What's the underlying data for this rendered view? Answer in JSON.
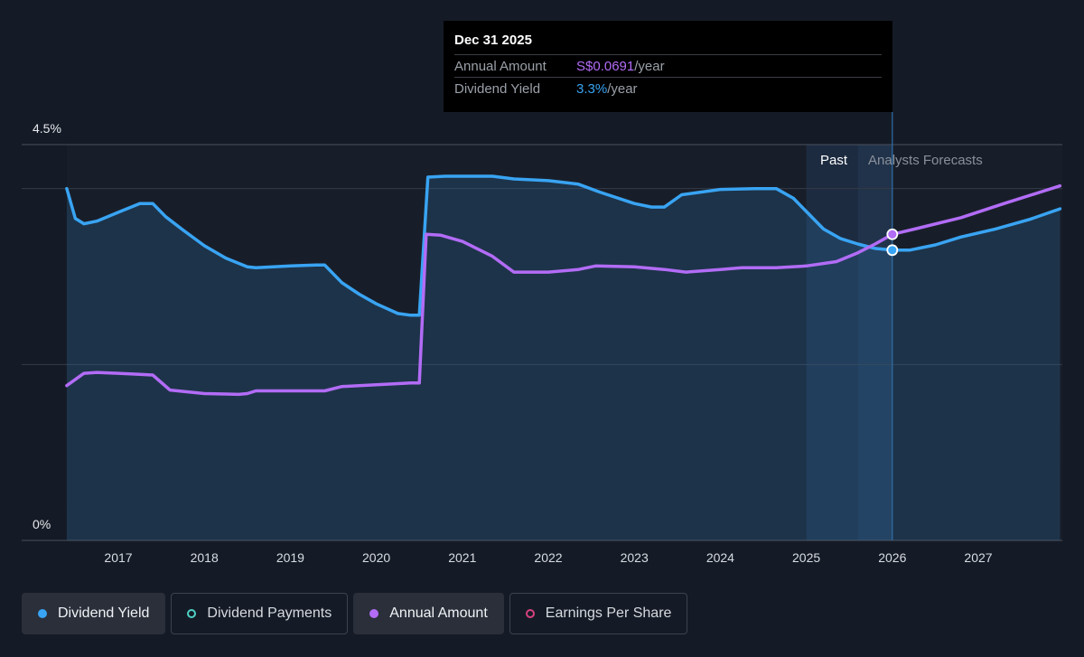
{
  "tooltip": {
    "date": "Dec 31 2025",
    "rows": [
      {
        "label": "Annual Amount",
        "value": "S$0.0691",
        "unit": "/year"
      },
      {
        "label": "Dividend Yield",
        "value": "3.3%",
        "unit": "/year"
      }
    ]
  },
  "regions": {
    "past_label": "Past",
    "forecast_label": "Analysts Forecasts"
  },
  "legend": [
    {
      "label": "Dividend Yield",
      "color": "#39a4f3",
      "style": "filled"
    },
    {
      "label": "Dividend Payments",
      "color": "#4fd1c5",
      "style": "outlined"
    },
    {
      "label": "Annual Amount",
      "color": "#b26cf6",
      "style": "filled"
    },
    {
      "label": "Earnings Per Share",
      "color": "#d6427f",
      "style": "outlined"
    }
  ],
  "colors": {
    "background": "#151b26",
    "plot_background": "#181e29",
    "yield_line": "#39a4f3",
    "amount_line": "#b26cf6",
    "grid": "#3a404c"
  },
  "chart_data": {
    "type": "line",
    "x_unit": "year",
    "x_range": [
      2016.4,
      2027.95
    ],
    "y_range": [
      0,
      4.5
    ],
    "y_tick_labels": [
      "0%",
      "4.5%"
    ],
    "x_ticks": [
      2017,
      2018,
      2019,
      2020,
      2021,
      2022,
      2023,
      2024,
      2025,
      2026,
      2027
    ],
    "past_forecast_boundary": 2026.0,
    "highlight_band": [
      2025.0,
      2026.0
    ],
    "marker_x": 2026.0,
    "grid": true,
    "series": [
      {
        "name": "Dividend Yield",
        "color": "#39a4f3",
        "area": true,
        "points": [
          [
            2016.4,
            4.0
          ],
          [
            2016.5,
            3.66
          ],
          [
            2016.6,
            3.6
          ],
          [
            2016.75,
            3.63
          ],
          [
            2017.0,
            3.73
          ],
          [
            2017.25,
            3.83
          ],
          [
            2017.4,
            3.83
          ],
          [
            2017.55,
            3.68
          ],
          [
            2017.75,
            3.53
          ],
          [
            2018.0,
            3.35
          ],
          [
            2018.25,
            3.21
          ],
          [
            2018.5,
            3.11
          ],
          [
            2018.6,
            3.1
          ],
          [
            2019.0,
            3.12
          ],
          [
            2019.3,
            3.13
          ],
          [
            2019.4,
            3.13
          ],
          [
            2019.6,
            2.93
          ],
          [
            2019.8,
            2.8
          ],
          [
            2020.0,
            2.69
          ],
          [
            2020.25,
            2.58
          ],
          [
            2020.4,
            2.56
          ],
          [
            2020.5,
            2.56
          ],
          [
            2020.6,
            4.13
          ],
          [
            2020.8,
            4.14
          ],
          [
            2021.0,
            4.14
          ],
          [
            2021.35,
            4.14
          ],
          [
            2021.6,
            4.11
          ],
          [
            2022.0,
            4.09
          ],
          [
            2022.35,
            4.05
          ],
          [
            2022.6,
            3.96
          ],
          [
            2023.0,
            3.83
          ],
          [
            2023.2,
            3.79
          ],
          [
            2023.35,
            3.79
          ],
          [
            2023.55,
            3.93
          ],
          [
            2024.0,
            3.99
          ],
          [
            2024.4,
            4.0
          ],
          [
            2024.65,
            4.0
          ],
          [
            2024.85,
            3.89
          ],
          [
            2025.0,
            3.74
          ],
          [
            2025.2,
            3.54
          ],
          [
            2025.4,
            3.43
          ],
          [
            2025.6,
            3.37
          ],
          [
            2025.8,
            3.32
          ],
          [
            2026.0,
            3.3
          ],
          [
            2026.2,
            3.3
          ],
          [
            2026.5,
            3.36
          ],
          [
            2026.8,
            3.45
          ],
          [
            2027.2,
            3.54
          ],
          [
            2027.6,
            3.65
          ],
          [
            2027.95,
            3.77
          ]
        ]
      },
      {
        "name": "Annual Amount",
        "color": "#b26cf6",
        "area": false,
        "points": [
          [
            2016.4,
            1.76
          ],
          [
            2016.6,
            1.9
          ],
          [
            2016.75,
            1.91
          ],
          [
            2017.0,
            1.9
          ],
          [
            2017.2,
            1.89
          ],
          [
            2017.4,
            1.88
          ],
          [
            2017.6,
            1.71
          ],
          [
            2018.0,
            1.67
          ],
          [
            2018.4,
            1.66
          ],
          [
            2018.5,
            1.67
          ],
          [
            2018.6,
            1.7
          ],
          [
            2019.0,
            1.7
          ],
          [
            2019.4,
            1.7
          ],
          [
            2019.6,
            1.75
          ],
          [
            2020.0,
            1.77
          ],
          [
            2020.4,
            1.79
          ],
          [
            2020.5,
            1.79
          ],
          [
            2020.58,
            3.48
          ],
          [
            2020.75,
            3.47
          ],
          [
            2021.0,
            3.4
          ],
          [
            2021.35,
            3.23
          ],
          [
            2021.6,
            3.05
          ],
          [
            2022.0,
            3.05
          ],
          [
            2022.35,
            3.08
          ],
          [
            2022.55,
            3.12
          ],
          [
            2023.0,
            3.11
          ],
          [
            2023.35,
            3.08
          ],
          [
            2023.6,
            3.05
          ],
          [
            2024.0,
            3.08
          ],
          [
            2024.25,
            3.1
          ],
          [
            2024.65,
            3.1
          ],
          [
            2025.0,
            3.12
          ],
          [
            2025.35,
            3.17
          ],
          [
            2025.6,
            3.27
          ],
          [
            2025.8,
            3.37
          ],
          [
            2026.0,
            3.48
          ],
          [
            2026.3,
            3.55
          ],
          [
            2026.8,
            3.67
          ],
          [
            2027.3,
            3.83
          ],
          [
            2027.95,
            4.03
          ]
        ]
      }
    ]
  }
}
